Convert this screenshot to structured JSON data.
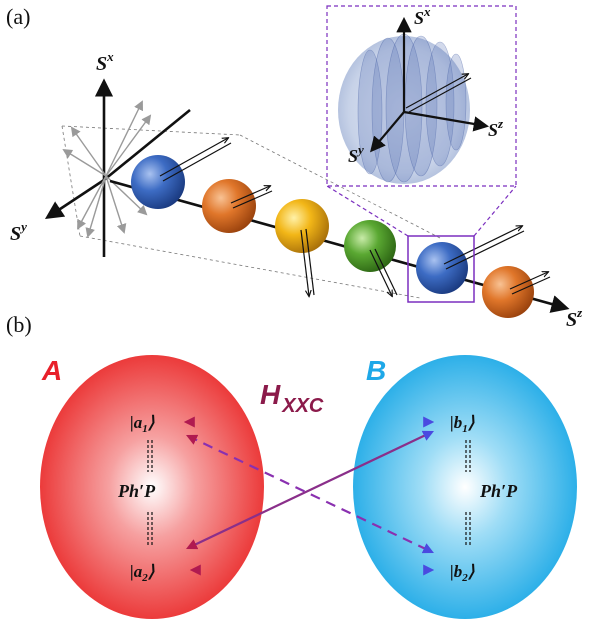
{
  "panel_a": {
    "label": "(a)",
    "axes": {
      "main_x": {
        "base": "S",
        "sup": "x"
      },
      "main_y": {
        "base": "S",
        "sup": "y"
      },
      "chain_z": {
        "base": "S",
        "sup": "z"
      },
      "inset_x": {
        "base": "S",
        "sup": "x"
      },
      "inset_y": {
        "base": "S",
        "sup": "y"
      },
      "inset_z": {
        "base": "S",
        "sup": "z"
      }
    },
    "spin_colors": [
      "#3d6cc4",
      "#e0762a",
      "#f2b617",
      "#5aa832",
      "#3d6cc4",
      "#e0762a"
    ],
    "highlight_color": "#7b2fbf"
  },
  "panel_b": {
    "label": "(b)",
    "group_a": {
      "label": "A",
      "color": "#e8202a"
    },
    "group_b": {
      "label": "B",
      "color": "#1ea8e8"
    },
    "coupling": {
      "base": "H",
      "sub": "XXC",
      "color": "#8b1a4a"
    },
    "states": {
      "a1": {
        "base": "|a",
        "sub": "1",
        "close": "⟩"
      },
      "a2": {
        "base": "|a",
        "sub": "2",
        "close": "⟩"
      },
      "b1": {
        "base": "|b",
        "sub": "1",
        "close": "⟩"
      },
      "b2": {
        "base": "|b",
        "sub": "2",
        "close": "⟩"
      }
    },
    "php_left": "Ph′P",
    "php_right": "Ph′P"
  }
}
